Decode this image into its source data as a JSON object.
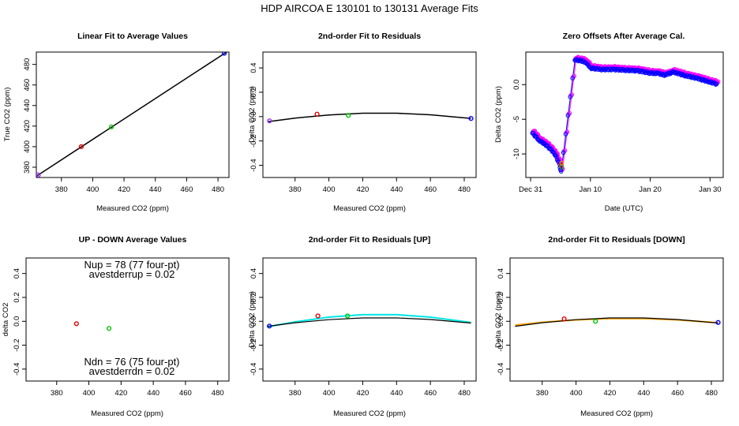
{
  "main_title": "HDP   AIRCOA E   130101 to 130131   Average Fits",
  "chart_data": [
    {
      "id": "p1",
      "type": "scatter",
      "title": "Linear Fit to Average Values",
      "xlabel": "Measured CO2 (ppm)",
      "ylabel": "True CO2 (ppm)",
      "xlim": [
        364,
        487
      ],
      "ylim": [
        370,
        492
      ],
      "xticks": [
        380,
        400,
        420,
        440,
        460,
        480
      ],
      "yticks": [
        380,
        400,
        420,
        440,
        460,
        480
      ],
      "points": [
        {
          "x": 365.3,
          "y": 372.5,
          "color": "#9b30ff"
        },
        {
          "x": 392.7,
          "y": 400.0,
          "color": "#e00000"
        },
        {
          "x": 411.9,
          "y": 419.2,
          "color": "#00c000"
        },
        {
          "x": 484.0,
          "y": 490.8,
          "color": "#0000ff"
        }
      ],
      "curves": [
        {
          "name": "linear fit",
          "color": "#000000",
          "width": 1.5,
          "x": [
            364.5,
            485.5
          ],
          "y": [
            371.8,
            492.0
          ]
        }
      ]
    },
    {
      "id": "p2",
      "type": "scatter",
      "title": "2nd-order Fit to Residuals",
      "xlabel": "Measured CO2 (ppm)",
      "ylabel": "Delta CO2 (ppm)",
      "xlim": [
        361,
        487
      ],
      "ylim": [
        -0.5,
        0.53
      ],
      "xticks": [
        380,
        400,
        420,
        440,
        460,
        480
      ],
      "yticks": [
        -0.4,
        -0.2,
        0.0,
        0.2,
        0.4
      ],
      "points": [
        {
          "x": 364.9,
          "y": -0.035,
          "color": "#9b30ff"
        },
        {
          "x": 393.0,
          "y": 0.02,
          "color": "#e00000"
        },
        {
          "x": 411.5,
          "y": 0.01,
          "color": "#00c000"
        },
        {
          "x": 484.0,
          "y": -0.015,
          "color": "#0000ff"
        }
      ],
      "curves": [
        {
          "name": "2nd-order fit",
          "color": "#000000",
          "width": 1.5,
          "x": [
            364,
            380,
            400,
            420,
            440,
            460,
            484
          ],
          "y": [
            -0.042,
            -0.012,
            0.014,
            0.028,
            0.028,
            0.015,
            -0.015
          ]
        }
      ]
    },
    {
      "id": "p3",
      "type": "scatter",
      "title": "Zero Offsets After Average Cal.",
      "xlabel": "Date (UTC)",
      "ylabel": "Delta CO2 (ppm)",
      "xlim": [
        -0.8,
        32.2
      ],
      "ylim": [
        -13.4,
        4.7
      ],
      "xticks": [
        0,
        10,
        20,
        30
      ],
      "xticklabels": [
        "Dec 31",
        "Jan 10",
        "Jan 20",
        "Jan 30"
      ],
      "yticks": [
        -10,
        -5,
        0
      ],
      "offset_series": [
        {
          "name": "purple",
          "color": "#9b30ff",
          "dx": 0.0,
          "dy": 0.0
        },
        {
          "name": "magenta",
          "color": "#ff00ff",
          "dx": 0.15,
          "dy": 0.12
        },
        {
          "name": "blue",
          "color": "#0000ff",
          "dx": -0.1,
          "dy": -0.2
        }
      ],
      "offset_path": {
        "x": [
          0.4,
          1.5,
          2.8,
          4.0,
          4.8,
          5.0,
          5.2,
          7.5,
          8.8,
          9.4,
          10.0,
          12.0,
          14.0,
          16.0,
          18.0,
          20.0,
          21.5,
          22.5,
          24.0,
          26.0,
          28.0,
          30.0,
          31.2
        ],
        "y": [
          -6.8,
          -7.8,
          -8.6,
          -9.6,
          -11.0,
          -11.7,
          -12.3,
          3.8,
          3.6,
          3.4,
          2.6,
          2.4,
          2.4,
          2.3,
          2.2,
          1.9,
          1.8,
          1.6,
          2.0,
          1.5,
          1.1,
          0.6,
          0.3
        ]
      },
      "extra_points": [
        {
          "x": 5.1,
          "y": -11.6,
          "color": "#e00000"
        },
        {
          "x": 5.15,
          "y": -11.9,
          "color": "#00c000"
        },
        {
          "x": 5.2,
          "y": -11.3,
          "color": "#ff8c00"
        }
      ]
    },
    {
      "id": "p4",
      "type": "scatter",
      "title": "UP - DOWN Average Values",
      "xlabel": "Measured CO2 (ppm)",
      "ylabel": "delta CO2",
      "xlim": [
        361,
        487
      ],
      "ylim": [
        -0.5,
        0.53
      ],
      "xticks": [
        380,
        400,
        420,
        440,
        460,
        480
      ],
      "yticks": [
        -0.4,
        -0.2,
        0.0,
        0.2,
        0.4
      ],
      "points": [
        {
          "x": 392.3,
          "y": -0.02,
          "color": "#e00000"
        },
        {
          "x": 412.5,
          "y": -0.06,
          "color": "#00c000"
        }
      ],
      "curves": []
    },
    {
      "id": "p5",
      "type": "scatter",
      "title": "2nd-order Fit to Residuals [UP]",
      "xlabel": "Measured CO2 (ppm)",
      "ylabel": "Delta CO2 (ppm)",
      "xlim": [
        361,
        487
      ],
      "ylim": [
        -0.5,
        0.53
      ],
      "xticks": [
        380,
        400,
        420,
        440,
        460,
        480
      ],
      "yticks": [
        -0.4,
        -0.2,
        0.0,
        0.2,
        0.4
      ],
      "points": [
        {
          "x": 364.8,
          "y": -0.04,
          "color": "#0000ff"
        },
        {
          "x": 393.5,
          "y": 0.045,
          "color": "#e00000"
        },
        {
          "x": 411.0,
          "y": 0.045,
          "color": "#00c000"
        }
      ],
      "curves": [
        {
          "name": "UP fit",
          "color": "#00e5e5",
          "width": 2,
          "x": [
            364,
            380,
            400,
            420,
            440,
            460,
            484
          ],
          "y": [
            -0.045,
            -0.005,
            0.035,
            0.055,
            0.055,
            0.035,
            -0.01
          ]
        },
        {
          "name": "average fit",
          "color": "#000000",
          "width": 1.2,
          "x": [
            364,
            380,
            400,
            420,
            440,
            460,
            484
          ],
          "y": [
            -0.042,
            -0.012,
            0.014,
            0.028,
            0.028,
            0.015,
            -0.015
          ]
        }
      ]
    },
    {
      "id": "p6",
      "type": "scatter",
      "title": "2nd-order Fit to Residuals [DOWN]",
      "xlabel": "Measured CO2 (ppm)",
      "ylabel": "Delta CO2 (ppm)",
      "xlim": [
        361,
        487
      ],
      "ylim": [
        -0.5,
        0.53
      ],
      "xticks": [
        380,
        400,
        420,
        440,
        460,
        480
      ],
      "yticks": [
        -0.4,
        -0.2,
        0.0,
        0.2,
        0.4
      ],
      "points": [
        {
          "x": 393.0,
          "y": 0.02,
          "color": "#e00000"
        },
        {
          "x": 411.5,
          "y": 0.0,
          "color": "#00c000"
        },
        {
          "x": 484.0,
          "y": -0.01,
          "color": "#0000ff"
        }
      ],
      "curves": [
        {
          "name": "DOWN fit",
          "color": "#ffa500",
          "width": 2,
          "x": [
            364,
            380,
            400,
            420,
            440,
            460,
            484
          ],
          "y": [
            -0.032,
            -0.008,
            0.012,
            0.022,
            0.022,
            0.012,
            -0.012
          ]
        },
        {
          "name": "average fit",
          "color": "#000000",
          "width": 1.2,
          "x": [
            364,
            380,
            400,
            420,
            440,
            460,
            484
          ],
          "y": [
            -0.042,
            -0.012,
            0.014,
            0.028,
            0.028,
            0.015,
            -0.015
          ]
        }
      ]
    }
  ],
  "annotations": {
    "nup": "Nup = 78 (77 four-pt)",
    "avestderrup": "avestderrup =  0.02",
    "ndn": "Ndn = 76 (75 four-pt)",
    "avestderrdn": "avestderrdn =  0.02"
  }
}
